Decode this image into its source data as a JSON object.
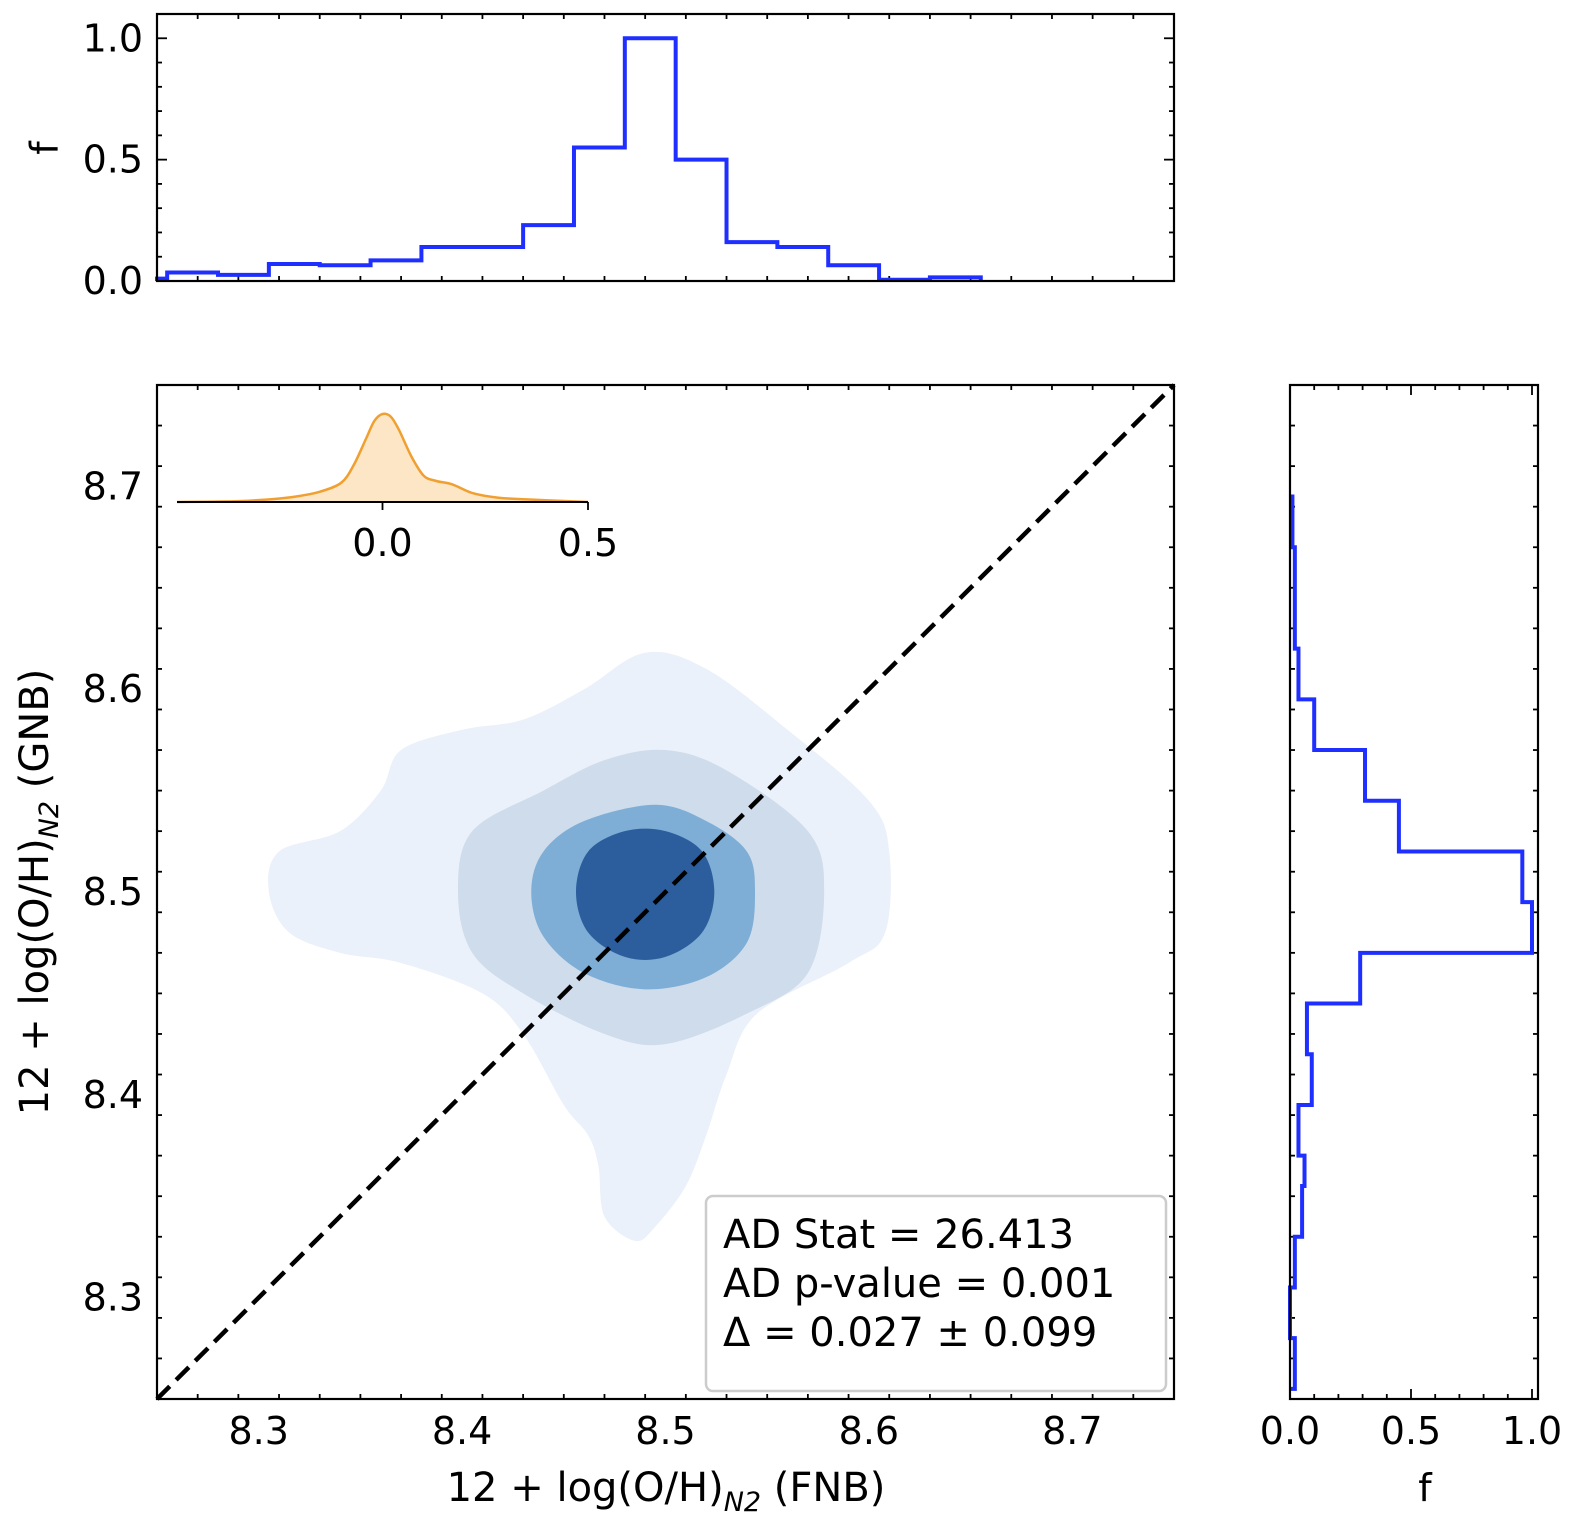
{
  "chart_data": [
    {
      "panel": "top-histogram",
      "type": "step-histogram",
      "ylabel": "f",
      "xlim": [
        8.25,
        8.75
      ],
      "ylim": [
        0.0,
        1.1
      ],
      "yticks": [
        "0.0",
        "0.5",
        "1.0"
      ],
      "line_color": "#1f2fff",
      "bin_edges": [
        8.25,
        8.255,
        8.28,
        8.305,
        8.33,
        8.355,
        8.38,
        8.405,
        8.43,
        8.455,
        8.48,
        8.505,
        8.53,
        8.555,
        8.58,
        8.605,
        8.63,
        8.655
      ],
      "values": [
        0.01,
        0.035,
        0.025,
        0.07,
        0.065,
        0.085,
        0.14,
        0.14,
        0.23,
        0.55,
        1.0,
        0.5,
        0.16,
        0.14,
        0.065,
        0.005,
        0.015
      ]
    },
    {
      "panel": "main-scatter-kde",
      "type": "contour",
      "xlabel": "12 + log(O/H)",
      "xlabel_sub": "N2",
      "xlabel_suffix": " (FNB)",
      "ylabel": "12 + log(O/H)",
      "ylabel_sub": "N2",
      "ylabel_suffix": " (GNB)",
      "xlim": [
        8.25,
        8.75
      ],
      "ylim": [
        8.25,
        8.75
      ],
      "xticks": [
        "8.3",
        "8.4",
        "8.5",
        "8.6",
        "8.7"
      ],
      "yticks": [
        "8.3",
        "8.4",
        "8.5",
        "8.6",
        "8.7"
      ],
      "one_to_one_line": true,
      "contour_colors": [
        "#ebf1fa",
        "#cfdcec",
        "#7eaed5",
        "#2c5e9e"
      ],
      "contours": [
        [
          [
            8.305,
            8.5
          ],
          [
            8.31,
            8.52
          ],
          [
            8.34,
            8.53
          ],
          [
            8.36,
            8.55
          ],
          [
            8.37,
            8.57
          ],
          [
            8.4,
            8.58
          ],
          [
            8.43,
            8.585
          ],
          [
            8.46,
            8.6
          ],
          [
            8.49,
            8.618
          ],
          [
            8.52,
            8.61
          ],
          [
            8.56,
            8.58
          ],
          [
            8.6,
            8.545
          ],
          [
            8.61,
            8.52
          ],
          [
            8.608,
            8.48
          ],
          [
            8.59,
            8.465
          ],
          [
            8.545,
            8.44
          ],
          [
            8.53,
            8.41
          ],
          [
            8.52,
            8.38
          ],
          [
            8.51,
            8.355
          ],
          [
            8.495,
            8.335
          ],
          [
            8.485,
            8.328
          ],
          [
            8.47,
            8.34
          ],
          [
            8.467,
            8.365
          ],
          [
            8.462,
            8.38
          ],
          [
            8.45,
            8.395
          ],
          [
            8.43,
            8.43
          ],
          [
            8.41,
            8.45
          ],
          [
            8.37,
            8.465
          ],
          [
            8.34,
            8.47
          ],
          [
            8.315,
            8.48
          ]
        ],
        [
          [
            8.398,
            8.5
          ],
          [
            8.405,
            8.53
          ],
          [
            8.44,
            8.55
          ],
          [
            8.47,
            8.565
          ],
          [
            8.5,
            8.57
          ],
          [
            8.53,
            8.56
          ],
          [
            8.57,
            8.53
          ],
          [
            8.578,
            8.5
          ],
          [
            8.57,
            8.46
          ],
          [
            8.54,
            8.44
          ],
          [
            8.5,
            8.425
          ],
          [
            8.47,
            8.43
          ],
          [
            8.43,
            8.45
          ],
          [
            8.405,
            8.47
          ]
        ],
        [
          [
            8.434,
            8.5
          ],
          [
            8.44,
            8.52
          ],
          [
            8.46,
            8.535
          ],
          [
            8.495,
            8.543
          ],
          [
            8.52,
            8.535
          ],
          [
            8.54,
            8.52
          ],
          [
            8.544,
            8.5
          ],
          [
            8.54,
            8.475
          ],
          [
            8.52,
            8.458
          ],
          [
            8.49,
            8.452
          ],
          [
            8.46,
            8.46
          ],
          [
            8.44,
            8.478
          ]
        ],
        [
          [
            8.456,
            8.5
          ],
          [
            8.462,
            8.52
          ],
          [
            8.48,
            8.53
          ],
          [
            8.5,
            8.53
          ],
          [
            8.518,
            8.52
          ],
          [
            8.524,
            8.5
          ],
          [
            8.518,
            8.48
          ],
          [
            8.5,
            8.468
          ],
          [
            8.48,
            8.468
          ],
          [
            8.462,
            8.48
          ]
        ]
      ]
    },
    {
      "panel": "inset-kde",
      "type": "area",
      "xticks": [
        "0.0",
        "0.5"
      ],
      "xlim": [
        -0.5,
        0.5
      ],
      "fill_color": "#fde6c6",
      "line_color": "#f0a030",
      "x": [
        -0.5,
        -0.35,
        -0.25,
        -0.2,
        -0.15,
        -0.1,
        -0.07,
        -0.04,
        -0.02,
        0.0,
        0.02,
        0.04,
        0.07,
        0.1,
        0.13,
        0.17,
        0.22,
        0.28,
        0.35,
        0.45,
        0.5
      ],
      "y": [
        0.0,
        0.01,
        0.04,
        0.07,
        0.12,
        0.22,
        0.42,
        0.72,
        0.92,
        1.0,
        0.97,
        0.82,
        0.52,
        0.3,
        0.24,
        0.2,
        0.1,
        0.05,
        0.03,
        0.01,
        0.0
      ]
    },
    {
      "panel": "right-histogram",
      "type": "step-histogram-horizontal",
      "xlabel": "f",
      "xlim": [
        0.0,
        1.0
      ],
      "xticks": [
        "0.0",
        "0.5",
        "1.0"
      ],
      "ylim": [
        8.25,
        8.75
      ],
      "line_color": "#1f2fff",
      "bin_edges": [
        8.255,
        8.28,
        8.305,
        8.33,
        8.355,
        8.37,
        8.395,
        8.42,
        8.445,
        8.47,
        8.495,
        8.52,
        8.545,
        8.57,
        8.595,
        8.62,
        8.645,
        8.67,
        8.695
      ],
      "values": [
        0.02,
        0.0,
        0.02,
        0.05,
        0.06,
        0.035,
        0.09,
        0.07,
        0.29,
        1.0,
        0.96,
        0.45,
        0.31,
        0.1,
        0.035,
        0.02,
        0.02,
        0.01
      ]
    }
  ],
  "legend_box": {
    "line1": "AD Stat = 26.413",
    "line2": "AD p-value = 0.001",
    "line3": "Δ = 0.027 ± 0.099"
  }
}
